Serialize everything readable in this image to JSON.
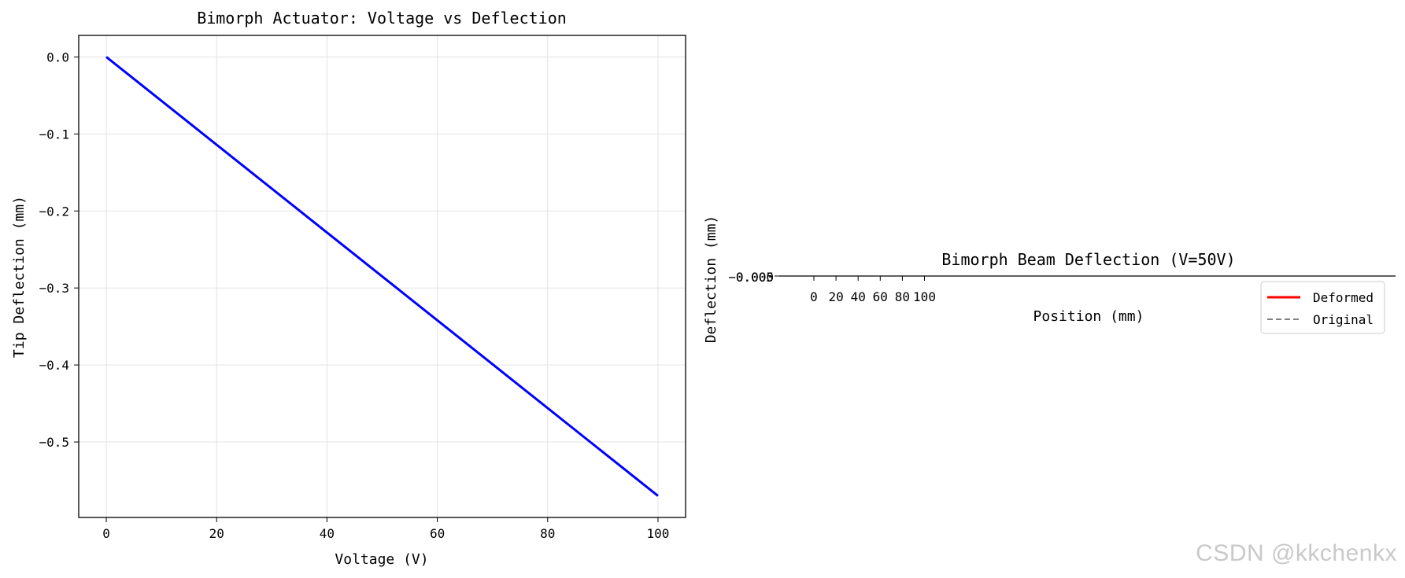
{
  "chart_data": [
    {
      "type": "line",
      "title": "Bimorph Actuator: Voltage vs Deflection",
      "xlabel": "Voltage (V)",
      "ylabel": "Tip Deflection (mm)",
      "xlim": [
        -5,
        105
      ],
      "ylim": [
        -0.598,
        0.028
      ],
      "xticks": [
        0,
        20,
        40,
        60,
        80,
        100
      ],
      "xtick_labels": [
        "0",
        "20",
        "40",
        "60",
        "80",
        "100"
      ],
      "yticks": [
        0.0,
        -0.1,
        -0.2,
        -0.3,
        -0.4,
        -0.5
      ],
      "ytick_labels": [
        "0.0",
        "−0.1",
        "−0.2",
        "−0.3",
        "−0.4",
        "−0.5"
      ],
      "grid": true,
      "series": [
        {
          "color": "#0000ff",
          "x": [
            0,
            100
          ],
          "y": [
            0.0,
            -0.57
          ]
        }
      ]
    },
    {
      "type": "line",
      "title": "Bimorph Beam Deflection (V=50V)",
      "xlabel": "Position (mm)",
      "ylabel": "Deflection (mm)",
      "xticks": [
        0,
        20,
        40,
        60,
        80,
        100
      ],
      "xtick_labels": [
        "0",
        "20",
        "40",
        "60",
        "80",
        "100"
      ],
      "ytick_labels_overlapping": [
        "−0.005",
        "0.000",
        "0.005"
      ],
      "legend_position": "right",
      "series": [
        {
          "name": "Deformed",
          "color": "#ff0000",
          "style": "solid"
        },
        {
          "name": "Original",
          "color": "#808080",
          "style": "dashed"
        }
      ]
    }
  ],
  "watermark": "CSDN @kkchenkx"
}
